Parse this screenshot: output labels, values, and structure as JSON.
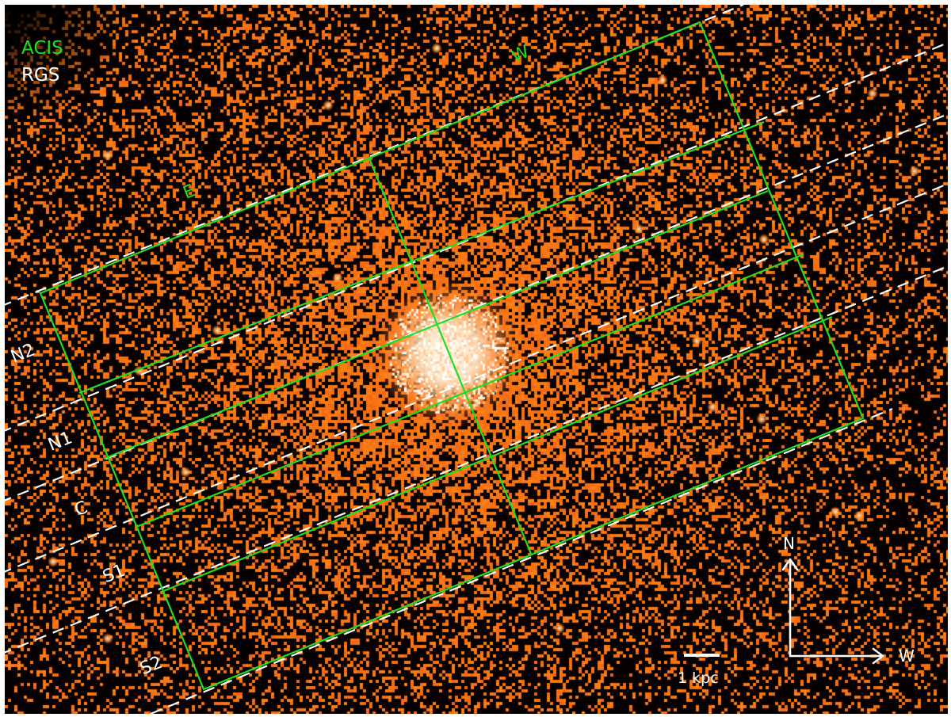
{
  "image": {
    "description_free": true,
    "colors": {
      "background": "#050100",
      "emission": "#ff6a1a",
      "core": "#fff4e4",
      "acis": "#22dd22",
      "rgs": "#ffffff"
    }
  },
  "legend": {
    "acis": "ACIS",
    "rgs": "RGS"
  },
  "regions": {
    "west": "W",
    "east": "E"
  },
  "strips": [
    "N2",
    "N1",
    "C",
    "S1",
    "S2"
  ],
  "scale_bar": {
    "label": "1 kpc"
  },
  "compass": {
    "north": "N",
    "west": "W"
  }
}
